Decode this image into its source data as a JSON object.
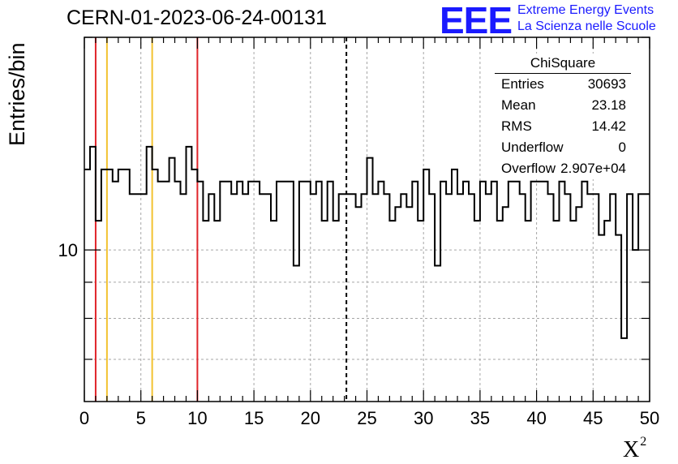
{
  "header": {
    "title": "CERN-01-2023-06-24-00131"
  },
  "logo": {
    "mark": "EEE",
    "line1": "Extreme Energy Events",
    "line2": "La Scienza nelle Scuole",
    "color": "#1a1aff"
  },
  "stats_box": {
    "title": "ChiSquare",
    "rows": [
      {
        "key": "Entries",
        "value": "30693"
      },
      {
        "key": "Mean",
        "value": "23.18"
      },
      {
        "key": "RMS",
        "value": "14.42"
      },
      {
        "key": "Underflow",
        "value": "0"
      },
      {
        "key": "Overflow",
        "value": "2.907e+04"
      }
    ]
  },
  "chart_data": {
    "type": "histogram",
    "title": "CERN-01-2023-06-24-00131",
    "xlabel_main": "X",
    "xlabel_sup": "2",
    "ylabel": "Entries/bin",
    "xlim": [
      0,
      50
    ],
    "ylim": [
      6.1,
      20
    ],
    "y_scale": "log",
    "bin_width": 0.5,
    "x_ticks": [
      0,
      5,
      10,
      15,
      20,
      25,
      30,
      35,
      40,
      45,
      50
    ],
    "y_tick_labels": [
      {
        "value": 10,
        "label": "10"
      }
    ],
    "grid": true,
    "bin_values": [
      13,
      14,
      11,
      13,
      13,
      12.5,
      13,
      13,
      12,
      12,
      12,
      14,
      13,
      12.5,
      12.5,
      13.5,
      12.5,
      12,
      14,
      13,
      12.5,
      11,
      12,
      11,
      12.5,
      12.5,
      12,
      12.5,
      12,
      12.5,
      12.5,
      12,
      12,
      11,
      12.5,
      12.5,
      12.5,
      9.5,
      12.5,
      12.5,
      12,
      12.5,
      11,
      12.5,
      11,
      12,
      12,
      12,
      11.5,
      12,
      13.5,
      12,
      12.5,
      12,
      11,
      11.5,
      12,
      11.5,
      12.5,
      11,
      13,
      12,
      9.5,
      12.5,
      12,
      13,
      12,
      12.5,
      12,
      11,
      12.5,
      12,
      12.5,
      11,
      11.5,
      12.5,
      12.5,
      12,
      11,
      12.5,
      12.5,
      12.5,
      12,
      11,
      12.5,
      12,
      11,
      11.5,
      12.5,
      12,
      12,
      10.5,
      11,
      12,
      10.5,
      7.5,
      12,
      10,
      12,
      12
    ],
    "vertical_lines": [
      {
        "x": 1,
        "color": "#e0242a",
        "style": "solid"
      },
      {
        "x": 2,
        "color": "#f2c230",
        "style": "solid"
      },
      {
        "x": 6,
        "color": "#f2c230",
        "style": "solid"
      },
      {
        "x": 10,
        "color": "#e0242a",
        "style": "solid"
      },
      {
        "x": 23.18,
        "color": "#000000",
        "style": "dashed"
      }
    ]
  }
}
